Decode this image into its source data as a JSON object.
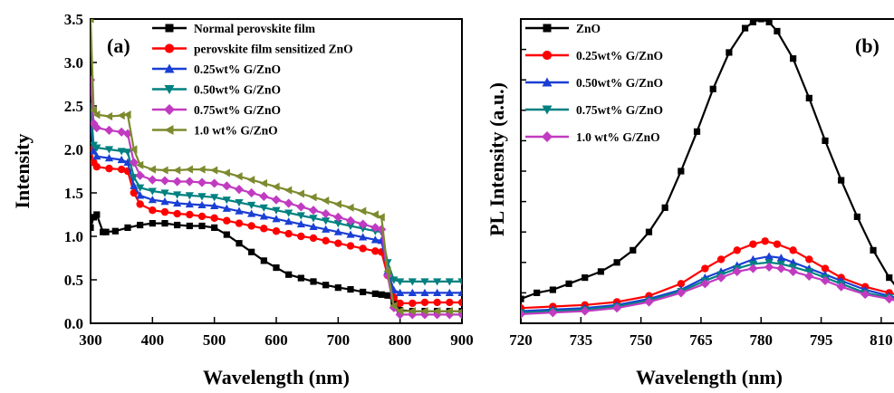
{
  "chart_data": [
    {
      "type": "line",
      "panel_label": "(a)",
      "xlabel": "Wavelength (nm)",
      "ylabel": "Intensity",
      "xlim": [
        300,
        900
      ],
      "ylim": [
        0,
        3.5
      ],
      "xticks": [
        "300",
        "400",
        "500",
        "600",
        "700",
        "800",
        "900"
      ],
      "yticks": [
        "0.0",
        "0.5",
        "1.0",
        "1.5",
        "2.0",
        "2.5",
        "3.0",
        "3.5"
      ],
      "legend_position": "top-right",
      "series": [
        {
          "name": "Normal perovskite film",
          "color": "#000000",
          "marker": "square",
          "x": [
            300,
            305,
            310,
            320,
            325,
            340,
            360,
            380,
            400,
            420,
            440,
            460,
            480,
            500,
            520,
            540,
            560,
            580,
            600,
            620,
            640,
            660,
            680,
            700,
            720,
            740,
            760,
            770,
            780,
            790,
            800,
            820,
            840,
            860,
            880,
            900
          ],
          "y": [
            1.1,
            1.22,
            1.25,
            1.05,
            1.05,
            1.06,
            1.1,
            1.13,
            1.15,
            1.15,
            1.13,
            1.12,
            1.12,
            1.1,
            1.02,
            0.92,
            0.82,
            0.72,
            0.64,
            0.56,
            0.52,
            0.48,
            0.44,
            0.41,
            0.39,
            0.36,
            0.34,
            0.33,
            0.32,
            0.25,
            0.15,
            0.14,
            0.14,
            0.14,
            0.14,
            0.14
          ]
        },
        {
          "name": "perovskite film sensitized ZnO",
          "color": "#ff0000",
          "marker": "circle",
          "x": [
            300,
            305,
            310,
            330,
            350,
            360,
            370,
            380,
            400,
            420,
            440,
            460,
            480,
            500,
            520,
            540,
            560,
            580,
            600,
            620,
            640,
            660,
            680,
            700,
            720,
            740,
            760,
            770,
            780,
            790,
            800,
            820,
            840,
            860,
            880,
            900
          ],
          "y": [
            2.0,
            1.85,
            1.8,
            1.78,
            1.77,
            1.75,
            1.5,
            1.37,
            1.3,
            1.28,
            1.26,
            1.25,
            1.23,
            1.21,
            1.18,
            1.15,
            1.12,
            1.09,
            1.06,
            1.03,
            1.0,
            0.98,
            0.95,
            0.92,
            0.89,
            0.86,
            0.83,
            0.82,
            0.55,
            0.3,
            0.23,
            0.23,
            0.24,
            0.24,
            0.24,
            0.24
          ]
        },
        {
          "name": "0.25wt% G/ZnO",
          "color": "#1a3fd4",
          "marker": "triangle-up",
          "x": [
            300,
            305,
            310,
            330,
            350,
            360,
            370,
            380,
            400,
            420,
            440,
            460,
            480,
            500,
            520,
            540,
            560,
            580,
            600,
            620,
            640,
            660,
            680,
            700,
            720,
            740,
            760,
            770,
            780,
            790,
            800,
            820,
            840,
            860,
            880,
            900
          ],
          "y": [
            2.3,
            1.98,
            1.92,
            1.9,
            1.88,
            1.85,
            1.58,
            1.47,
            1.42,
            1.4,
            1.38,
            1.37,
            1.36,
            1.35,
            1.32,
            1.29,
            1.26,
            1.23,
            1.2,
            1.17,
            1.14,
            1.11,
            1.08,
            1.05,
            1.02,
            0.99,
            0.96,
            0.95,
            0.6,
            0.38,
            0.35,
            0.35,
            0.35,
            0.35,
            0.35,
            0.35
          ]
        },
        {
          "name": "0.50wt% G/ZnO",
          "color": "#008080",
          "marker": "triangle-down",
          "x": [
            300,
            305,
            310,
            330,
            350,
            360,
            370,
            380,
            400,
            420,
            440,
            460,
            480,
            500,
            520,
            540,
            560,
            580,
            600,
            620,
            640,
            660,
            680,
            700,
            720,
            740,
            760,
            770,
            780,
            790,
            800,
            820,
            840,
            860,
            880,
            900
          ],
          "y": [
            2.5,
            2.05,
            2.02,
            2.0,
            1.98,
            1.97,
            1.68,
            1.56,
            1.52,
            1.5,
            1.48,
            1.47,
            1.46,
            1.45,
            1.42,
            1.39,
            1.36,
            1.33,
            1.3,
            1.27,
            1.24,
            1.21,
            1.18,
            1.15,
            1.12,
            1.09,
            1.06,
            1.05,
            0.7,
            0.5,
            0.48,
            0.48,
            0.48,
            0.48,
            0.48,
            0.48
          ]
        },
        {
          "name": "0.75wt% G/ZnO",
          "color": "#c13bc1",
          "marker": "diamond",
          "x": [
            300,
            305,
            310,
            330,
            350,
            360,
            370,
            380,
            400,
            420,
            440,
            460,
            480,
            500,
            520,
            540,
            560,
            580,
            600,
            620,
            640,
            660,
            680,
            700,
            720,
            740,
            760,
            770,
            780,
            790,
            800,
            820,
            840,
            860,
            880,
            900
          ],
          "y": [
            2.8,
            2.3,
            2.25,
            2.22,
            2.2,
            2.18,
            1.85,
            1.7,
            1.65,
            1.64,
            1.63,
            1.63,
            1.62,
            1.61,
            1.58,
            1.54,
            1.5,
            1.46,
            1.42,
            1.38,
            1.34,
            1.3,
            1.26,
            1.22,
            1.18,
            1.14,
            1.1,
            1.08,
            0.55,
            0.18,
            0.1,
            0.1,
            0.1,
            0.1,
            0.1,
            0.1
          ]
        },
        {
          "name": "1.0 wt% G/ZnO",
          "color": "#7d8a2e",
          "marker": "triangle-left",
          "x": [
            300,
            305,
            310,
            330,
            350,
            360,
            370,
            380,
            400,
            420,
            440,
            460,
            480,
            500,
            520,
            540,
            560,
            580,
            600,
            620,
            640,
            660,
            680,
            700,
            720,
            740,
            760,
            770,
            780,
            790,
            800,
            820,
            840,
            860,
            880,
            900
          ],
          "y": [
            3.5,
            2.45,
            2.4,
            2.38,
            2.39,
            2.4,
            2.0,
            1.82,
            1.77,
            1.76,
            1.76,
            1.77,
            1.77,
            1.76,
            1.73,
            1.69,
            1.65,
            1.61,
            1.57,
            1.53,
            1.49,
            1.45,
            1.41,
            1.37,
            1.33,
            1.29,
            1.25,
            1.22,
            0.6,
            0.2,
            0.14,
            0.14,
            0.14,
            0.14,
            0.14,
            0.14
          ]
        }
      ]
    },
    {
      "type": "line",
      "panel_label": "(b)",
      "xlabel": "Wavelength (nm)",
      "ylabel": "PL Intensity (a.u.)",
      "xlim": [
        720,
        815
      ],
      "ylim": [
        0,
        1
      ],
      "xticks": [
        "720",
        "735",
        "750",
        "765",
        "780",
        "795",
        "810"
      ],
      "yticks": [],
      "legend_position": "top-left",
      "series": [
        {
          "name": "ZnO",
          "color": "#000000",
          "marker": "square",
          "x": [
            720,
            724,
            728,
            732,
            736,
            740,
            744,
            748,
            752,
            756,
            760,
            764,
            768,
            772,
            776,
            778,
            780,
            782,
            784,
            788,
            792,
            796,
            800,
            804,
            808,
            812,
            815
          ],
          "y": [
            0.08,
            0.1,
            0.11,
            0.13,
            0.15,
            0.17,
            0.2,
            0.24,
            0.3,
            0.38,
            0.5,
            0.63,
            0.77,
            0.89,
            0.97,
            0.99,
            1.0,
            0.99,
            0.96,
            0.87,
            0.74,
            0.6,
            0.47,
            0.35,
            0.24,
            0.15,
            0.1
          ]
        },
        {
          "name": "0.25wt% G/ZnO",
          "color": "#ff0000",
          "marker": "circle",
          "x": [
            720,
            728,
            736,
            744,
            752,
            760,
            766,
            770,
            774,
            778,
            781,
            784,
            788,
            792,
            796,
            800,
            806,
            812,
            815
          ],
          "y": [
            0.05,
            0.055,
            0.06,
            0.07,
            0.09,
            0.13,
            0.18,
            0.21,
            0.24,
            0.26,
            0.27,
            0.26,
            0.24,
            0.21,
            0.18,
            0.15,
            0.12,
            0.1,
            0.09
          ]
        },
        {
          "name": "0.50wt% G/ZnO",
          "color": "#1a3fd4",
          "marker": "triangle-up",
          "x": [
            720,
            728,
            736,
            744,
            752,
            760,
            766,
            770,
            774,
            778,
            782,
            785,
            788,
            792,
            796,
            800,
            806,
            812,
            815
          ],
          "y": [
            0.04,
            0.045,
            0.05,
            0.06,
            0.08,
            0.11,
            0.15,
            0.17,
            0.19,
            0.21,
            0.22,
            0.215,
            0.2,
            0.18,
            0.16,
            0.14,
            0.11,
            0.09,
            0.08
          ]
        },
        {
          "name": "0.75wt% G/ZnO",
          "color": "#008080",
          "marker": "triangle-down",
          "x": [
            720,
            728,
            736,
            744,
            752,
            760,
            766,
            770,
            774,
            778,
            782,
            785,
            788,
            792,
            796,
            800,
            806,
            812,
            815
          ],
          "y": [
            0.035,
            0.04,
            0.045,
            0.055,
            0.075,
            0.105,
            0.14,
            0.16,
            0.18,
            0.195,
            0.2,
            0.195,
            0.185,
            0.17,
            0.15,
            0.13,
            0.1,
            0.085,
            0.075
          ]
        },
        {
          "name": "1.0 wt% G/ZnO",
          "color": "#c13bc1",
          "marker": "diamond",
          "x": [
            720,
            728,
            736,
            744,
            752,
            760,
            766,
            770,
            774,
            778,
            782,
            785,
            788,
            792,
            796,
            800,
            806,
            812,
            815
          ],
          "y": [
            0.03,
            0.035,
            0.04,
            0.05,
            0.07,
            0.1,
            0.13,
            0.15,
            0.17,
            0.18,
            0.185,
            0.18,
            0.17,
            0.155,
            0.14,
            0.12,
            0.095,
            0.08,
            0.07
          ]
        }
      ]
    }
  ]
}
